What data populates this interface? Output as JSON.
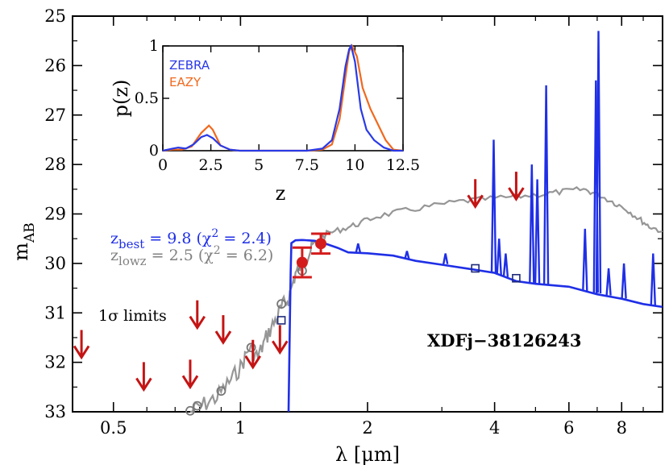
{
  "chart_data": [
    {
      "type": "line",
      "title": "",
      "xlabel": "λ [μm]",
      "ylabel_main": "m",
      "ylabel_sub": "AB",
      "xscale": "log",
      "xlim": [
        0.4,
        10.0
      ],
      "ylim": [
        33,
        25
      ],
      "xticks": [
        {
          "value": 0.5,
          "label": "0.5"
        },
        {
          "value": 1,
          "label": "1"
        },
        {
          "value": 2,
          "label": "2"
        },
        {
          "value": 4,
          "label": "4"
        },
        {
          "value": 6,
          "label": "6"
        },
        {
          "value": 8,
          "label": "8"
        }
      ],
      "yticks": [
        {
          "value": 25,
          "label": "25"
        },
        {
          "value": 26,
          "label": "26"
        },
        {
          "value": 27,
          "label": "27"
        },
        {
          "value": 28,
          "label": "28"
        },
        {
          "value": 29,
          "label": "29"
        },
        {
          "value": 30,
          "label": "30"
        },
        {
          "value": 31,
          "label": "31"
        },
        {
          "value": 32,
          "label": "32"
        },
        {
          "value": 33,
          "label": "33"
        }
      ],
      "object_name": "XDFj−38126243",
      "limits_label": "1σ limits",
      "fit_labels": {
        "best": {
          "z": "z",
          "sub": "best",
          "text": " = 9.8 (χ",
          "sup": "2",
          "end": " = 2.4)"
        },
        "lowz": {
          "z": "z",
          "sub": "lowz",
          "text": " = 2.5 (χ",
          "sup": "2",
          "end": " = 6.2)"
        }
      },
      "colors": {
        "best": "#1f2fe6",
        "lowz": "#969696",
        "limits": "#c41414",
        "detections": "#d41c1c",
        "box_markers": "#1f2a7a"
      },
      "series": [
        {
          "name": "z_best template",
          "color": "#1f2fe6",
          "points": [
            [
              1.3,
              33.1
            ],
            [
              1.31,
              31.0
            ],
            [
              1.315,
              30.2
            ],
            [
              1.32,
              29.6
            ],
            [
              1.35,
              29.55
            ],
            [
              1.4,
              29.5
            ],
            [
              1.5,
              29.55
            ],
            [
              1.6,
              29.6
            ],
            [
              1.7,
              29.7
            ],
            [
              1.8,
              29.75
            ],
            [
              2.0,
              29.8
            ],
            [
              2.3,
              29.85
            ],
            [
              2.6,
              29.95
            ],
            [
              3.0,
              30.0
            ],
            [
              3.5,
              30.1
            ],
            [
              4.0,
              30.2
            ],
            [
              4.5,
              30.35
            ],
            [
              5.0,
              30.4
            ],
            [
              6.0,
              30.5
            ],
            [
              7.0,
              30.6
            ],
            [
              8.0,
              30.7
            ],
            [
              9.0,
              30.8
            ],
            [
              10.0,
              30.9
            ]
          ],
          "emission_lines": [
            {
              "x": 1.9,
              "peak": 29.6
            },
            {
              "x": 2.48,
              "peak": 29.75
            },
            {
              "x": 3.06,
              "peak": 29.8
            },
            {
              "x": 3.98,
              "peak": 27.5
            },
            {
              "x": 4.1,
              "peak": 29.5
            },
            {
              "x": 4.25,
              "peak": 29.8
            },
            {
              "x": 4.9,
              "peak": 28.0
            },
            {
              "x": 5.05,
              "peak": 28.3
            },
            {
              "x": 5.3,
              "peak": 26.4
            },
            {
              "x": 6.55,
              "peak": 29.3
            },
            {
              "x": 6.95,
              "peak": 26.3
            },
            {
              "x": 7.05,
              "peak": 25.3
            },
            {
              "x": 7.45,
              "peak": 30.1
            },
            {
              "x": 8.1,
              "peak": 30.0
            },
            {
              "x": 9.5,
              "peak": 29.8
            }
          ]
        },
        {
          "name": "z_lowz template",
          "color": "#969696",
          "points": [
            [
              0.76,
              33.0
            ],
            [
              0.82,
              32.85
            ],
            [
              0.88,
              32.7
            ],
            [
              0.94,
              32.4
            ],
            [
              1.0,
              32.1
            ],
            [
              1.05,
              31.7
            ],
            [
              1.1,
              31.9
            ],
            [
              1.15,
              31.5
            ],
            [
              1.2,
              31.2
            ],
            [
              1.25,
              30.9
            ],
            [
              1.3,
              30.7
            ],
            [
              1.35,
              30.2
            ],
            [
              1.4,
              30.0
            ],
            [
              1.45,
              29.8
            ],
            [
              1.5,
              29.6
            ],
            [
              1.6,
              29.4
            ],
            [
              1.75,
              29.3
            ],
            [
              1.9,
              29.2
            ],
            [
              2.1,
              29.05
            ],
            [
              2.4,
              28.95
            ],
            [
              2.8,
              28.85
            ],
            [
              3.3,
              28.75
            ],
            [
              3.8,
              28.7
            ],
            [
              4.5,
              28.65
            ],
            [
              5.2,
              28.6
            ],
            [
              5.8,
              28.55
            ],
            [
              6.5,
              28.5
            ],
            [
              7.0,
              28.6
            ],
            [
              7.6,
              28.75
            ],
            [
              8.2,
              28.9
            ],
            [
              8.8,
              29.1
            ],
            [
              9.3,
              29.25
            ],
            [
              10.0,
              29.35
            ]
          ]
        }
      ],
      "circle_markers": [
        [
          0.76,
          32.98
        ],
        [
          0.79,
          32.88
        ],
        [
          0.9,
          32.58
        ],
        [
          1.06,
          31.7
        ],
        [
          1.25,
          30.82
        ],
        [
          1.4,
          30.15
        ]
      ],
      "box_markers": [
        [
          1.25,
          31.15
        ],
        [
          3.6,
          30.1
        ],
        [
          4.5,
          30.3
        ]
      ],
      "upper_limits": [
        [
          0.42,
          31.9
        ],
        [
          0.59,
          32.55
        ],
        [
          0.76,
          32.5
        ],
        [
          0.79,
          31.3
        ],
        [
          0.91,
          31.6
        ],
        [
          1.07,
          32.1
        ],
        [
          1.24,
          31.8
        ],
        [
          3.6,
          28.85
        ],
        [
          4.5,
          28.7
        ]
      ],
      "detections": [
        {
          "x": 1.4,
          "y": 29.98,
          "err": 0.3
        },
        {
          "x": 1.55,
          "y": 29.6,
          "err": 0.2
        }
      ]
    },
    {
      "type": "line",
      "title": "",
      "xlabel": "z",
      "ylabel": "p(z)",
      "xlim": [
        0,
        12.5
      ],
      "ylim": [
        0,
        1
      ],
      "xticks": [
        {
          "value": 0,
          "label": "0"
        },
        {
          "value": 2.5,
          "label": "2.5"
        },
        {
          "value": 5,
          "label": "5"
        },
        {
          "value": 7.5,
          "label": "7.5"
        },
        {
          "value": 10,
          "label": "10"
        },
        {
          "value": 12.5,
          "label": "12.5"
        }
      ],
      "yticks": [
        {
          "value": 0,
          "label": "0"
        },
        {
          "value": 0.5,
          "label": "0.5"
        },
        {
          "value": 1,
          "label": "1"
        }
      ],
      "legend": [
        {
          "name": "ZEBRA",
          "color": "#2a3ae6"
        },
        {
          "name": "EAZY",
          "color": "#f0691e"
        }
      ],
      "series": [
        {
          "name": "ZEBRA",
          "color": "#2a3ae6",
          "points": [
            [
              0,
              0
            ],
            [
              0.5,
              0.02
            ],
            [
              0.8,
              0.03
            ],
            [
              1.2,
              0.02
            ],
            [
              1.6,
              0.06
            ],
            [
              2.0,
              0.13
            ],
            [
              2.3,
              0.15
            ],
            [
              2.6,
              0.12
            ],
            [
              3.0,
              0.05
            ],
            [
              3.5,
              0.01
            ],
            [
              4,
              0
            ],
            [
              7.5,
              0
            ],
            [
              8.3,
              0.02
            ],
            [
              8.8,
              0.1
            ],
            [
              9.2,
              0.4
            ],
            [
              9.5,
              0.8
            ],
            [
              9.7,
              0.97
            ],
            [
              9.8,
              1.0
            ],
            [
              10.0,
              0.85
            ],
            [
              10.3,
              0.4
            ],
            [
              10.6,
              0.2
            ],
            [
              11.0,
              0.1
            ],
            [
              11.5,
              0.03
            ],
            [
              12.0,
              0.0
            ],
            [
              12.5,
              0.0
            ]
          ]
        },
        {
          "name": "EAZY",
          "color": "#f0691e",
          "points": [
            [
              0,
              0
            ],
            [
              0.5,
              0.01
            ],
            [
              1.0,
              0.01
            ],
            [
              1.5,
              0.04
            ],
            [
              2.0,
              0.17
            ],
            [
              2.4,
              0.24
            ],
            [
              2.6,
              0.2
            ],
            [
              3.0,
              0.05
            ],
            [
              3.5,
              0.01
            ],
            [
              4,
              0
            ],
            [
              7.5,
              0
            ],
            [
              8.3,
              0.01
            ],
            [
              8.8,
              0.06
            ],
            [
              9.2,
              0.3
            ],
            [
              9.5,
              0.7
            ],
            [
              9.7,
              0.95
            ],
            [
              9.85,
              1.0
            ],
            [
              10.1,
              0.9
            ],
            [
              10.4,
              0.6
            ],
            [
              10.8,
              0.4
            ],
            [
              11.2,
              0.25
            ],
            [
              11.6,
              0.1
            ],
            [
              12.0,
              0.01
            ],
            [
              12.5,
              0.0
            ]
          ]
        }
      ]
    }
  ]
}
